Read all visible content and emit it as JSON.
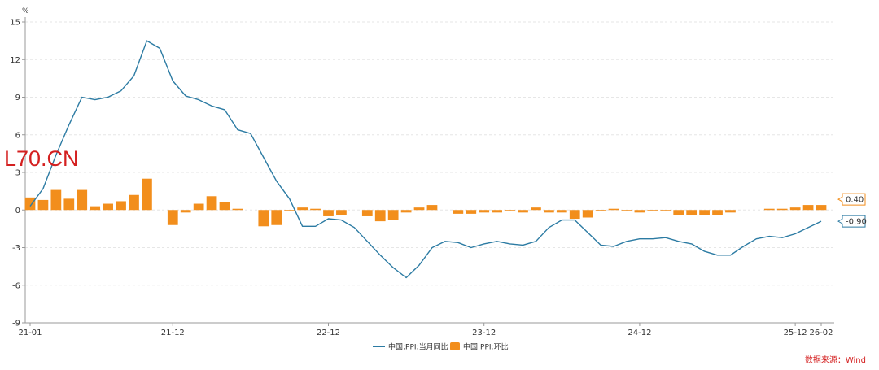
{
  "watermark": "L70.CN",
  "source": "数据来源：Wind",
  "colors": {
    "yoy": "#2c7ba3",
    "mom": "#f28e1c",
    "grid": "#e6e6e6",
    "axis": "#999999"
  },
  "chart_data": {
    "type": "bar+line",
    "unit": "%",
    "ylim": [
      -9,
      15
    ],
    "yticks": [
      -9,
      -6,
      -3,
      0,
      3,
      6,
      9,
      12,
      15
    ],
    "xticks": [
      {
        "index": 0,
        "label": "21-01"
      },
      {
        "index": 11,
        "label": "21-12"
      },
      {
        "index": 23,
        "label": "22-12"
      },
      {
        "index": 35,
        "label": "23-12"
      },
      {
        "index": 47,
        "label": "24-12"
      },
      {
        "index": 59,
        "label": "25-12"
      },
      {
        "index": 61,
        "label": "26-02"
      }
    ],
    "n_points": 62,
    "series": [
      {
        "name": "中国:PPI:当月同比",
        "type": "line",
        "values": [
          0.3,
          1.7,
          4.4,
          6.8,
          9.0,
          8.8,
          9.0,
          9.5,
          10.7,
          13.5,
          12.9,
          10.3,
          9.1,
          8.8,
          8.3,
          8.0,
          6.4,
          6.1,
          4.2,
          2.3,
          0.9,
          -1.3,
          -1.3,
          -0.7,
          -0.8,
          -1.4,
          -2.5,
          -3.6,
          -4.6,
          -5.4,
          -4.4,
          -3.0,
          -2.5,
          -2.6,
          -3.0,
          -2.7,
          -2.5,
          -2.7,
          -2.8,
          -2.5,
          -1.4,
          -0.8,
          -0.8,
          -1.8,
          -2.8,
          -2.9,
          -2.5,
          -2.3,
          -2.3,
          -2.2,
          -2.5,
          -2.7,
          -3.3,
          -3.6,
          -3.6,
          -2.9,
          -2.3,
          -2.1,
          -2.2,
          -1.9,
          -1.4,
          -0.9
        ],
        "end_label": "-0.90"
      },
      {
        "name": "中国:PPI:环比",
        "type": "bar",
        "values": [
          1.0,
          0.8,
          1.6,
          0.9,
          1.6,
          0.3,
          0.5,
          0.7,
          1.2,
          2.5,
          null,
          -1.2,
          -0.2,
          0.5,
          1.1,
          0.6,
          0.1,
          null,
          -1.3,
          -1.2,
          -0.1,
          0.2,
          0.1,
          -0.5,
          -0.4,
          null,
          -0.5,
          -0.9,
          -0.8,
          -0.2,
          0.2,
          0.4,
          null,
          -0.3,
          -0.3,
          -0.2,
          -0.2,
          -0.1,
          -0.2,
          0.2,
          -0.2,
          -0.2,
          -0.7,
          -0.6,
          -0.1,
          0.1,
          -0.1,
          -0.2,
          -0.1,
          -0.1,
          -0.4,
          -0.4,
          -0.4,
          -0.4,
          -0.2,
          null,
          null,
          0.1,
          0.1,
          0.2,
          0.4,
          0.4
        ],
        "end_label": "0.40"
      }
    ]
  }
}
